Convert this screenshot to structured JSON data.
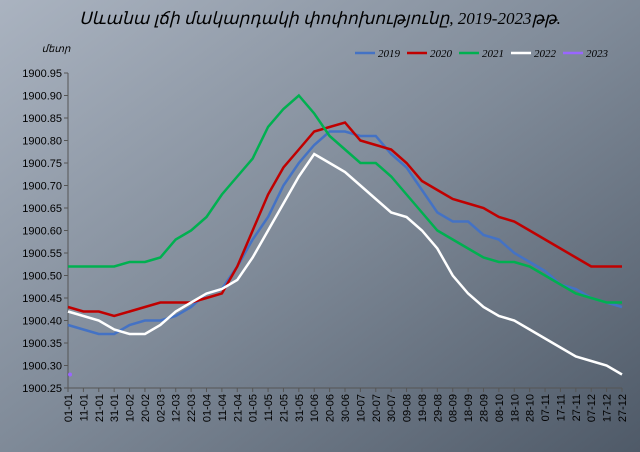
{
  "chart_data": {
    "type": "line",
    "title": "Սևանա լճի մակարդակի փոփոխությունը, 2019-2023թթ.",
    "y_label": "մետր",
    "categories": [
      "01-01",
      "11-01",
      "21-01",
      "31-01",
      "10-02",
      "20-02",
      "02-03",
      "12-03",
      "22-03",
      "01-04",
      "11-04",
      "21-04",
      "01-05",
      "11-05",
      "21-05",
      "31-05",
      "10-06",
      "20-06",
      "30-06",
      "10-07",
      "20-07",
      "30-07",
      "09-08",
      "19-08",
      "29-08",
      "08-09",
      "18-09",
      "28-09",
      "08-10",
      "18-10",
      "28-10",
      "07-11",
      "17-11",
      "27-11",
      "07-12",
      "17-12",
      "27-12"
    ],
    "series": [
      {
        "name": "2019",
        "color": "#4472c4",
        "values": [
          1900.39,
          1900.38,
          1900.37,
          1900.37,
          1900.39,
          1900.4,
          1900.4,
          1900.41,
          1900.43,
          1900.46,
          1900.47,
          1900.52,
          1900.58,
          1900.63,
          1900.7,
          1900.75,
          1900.79,
          1900.82,
          1900.82,
          1900.81,
          1900.81,
          1900.77,
          1900.74,
          1900.69,
          1900.64,
          1900.62,
          1900.62,
          1900.59,
          1900.58,
          1900.55,
          1900.53,
          1900.51,
          1900.48,
          1900.47,
          1900.45,
          1900.44,
          1900.43
        ]
      },
      {
        "name": "2020",
        "color": "#c00000",
        "values": [
          1900.43,
          1900.42,
          1900.42,
          1900.41,
          1900.42,
          1900.43,
          1900.44,
          1900.44,
          1900.44,
          1900.45,
          1900.46,
          1900.52,
          1900.6,
          1900.68,
          1900.74,
          1900.78,
          1900.82,
          1900.83,
          1900.84,
          1900.8,
          1900.79,
          1900.78,
          1900.75,
          1900.71,
          1900.69,
          1900.67,
          1900.66,
          1900.65,
          1900.63,
          1900.62,
          1900.6,
          1900.58,
          1900.56,
          1900.54,
          1900.52,
          1900.52,
          1900.52
        ]
      },
      {
        "name": "2021",
        "color": "#00b050",
        "values": [
          1900.52,
          1900.52,
          1900.52,
          1900.52,
          1900.53,
          1900.53,
          1900.54,
          1900.58,
          1900.6,
          1900.63,
          1900.68,
          1900.72,
          1900.76,
          1900.83,
          1900.87,
          1900.9,
          1900.86,
          1900.81,
          1900.78,
          1900.75,
          1900.75,
          1900.72,
          1900.68,
          1900.64,
          1900.6,
          1900.58,
          1900.56,
          1900.54,
          1900.53,
          1900.53,
          1900.52,
          1900.5,
          1900.48,
          1900.46,
          1900.45,
          1900.44,
          1900.44
        ]
      },
      {
        "name": "2022",
        "color": "#ffffff",
        "values": [
          1900.42,
          1900.41,
          1900.4,
          1900.38,
          1900.37,
          1900.37,
          1900.39,
          1900.42,
          1900.44,
          1900.46,
          1900.47,
          1900.49,
          1900.54,
          1900.6,
          1900.66,
          1900.72,
          1900.77,
          1900.75,
          1900.73,
          1900.7,
          1900.67,
          1900.64,
          1900.63,
          1900.6,
          1900.56,
          1900.5,
          1900.46,
          1900.43,
          1900.41,
          1900.4,
          1900.38,
          1900.36,
          1900.34,
          1900.32,
          1900.31,
          1900.3,
          1900.28
        ]
      },
      {
        "name": "2023",
        "color": "#9966ff",
        "values": [
          1900.28,
          null,
          null,
          null,
          null,
          null,
          null,
          null,
          null,
          null,
          null,
          null,
          null,
          null,
          null,
          null,
          null,
          null,
          null,
          null,
          null,
          null,
          null,
          null,
          null,
          null,
          null,
          null,
          null,
          null,
          null,
          null,
          null,
          null,
          null,
          null,
          null
        ]
      }
    ],
    "ylim": [
      1900.25,
      1900.95
    ],
    "yticks": [
      1900.25,
      {
        "value": 1900.3,
        "label": "1900.30"
      },
      1900.35,
      {
        "value": 1900.4,
        "label": "1900.40"
      },
      1900.45,
      {
        "value": 1900.5,
        "label": "1900.50"
      },
      1900.55,
      {
        "value": 1900.6,
        "label": "1900.60"
      },
      1900.65,
      {
        "value": 1900.7,
        "label": "1900.70"
      },
      1900.75,
      {
        "value": 1900.8,
        "label": "1900.80"
      },
      1900.85,
      {
        "value": 1900.9,
        "label": "1900.90"
      },
      1900.95
    ],
    "legend": "top-right"
  }
}
